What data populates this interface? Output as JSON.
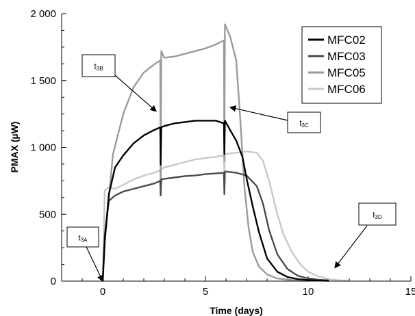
{
  "chart_data": {
    "type": "line",
    "xlabel": "Time (days)",
    "ylabel": "PMAX (µW)",
    "xlim": [
      -2,
      15
    ],
    "ylim": [
      0,
      2000
    ],
    "xticks": [
      {
        "value": 0,
        "label": "0"
      },
      {
        "value": 5,
        "label": "5"
      },
      {
        "value": 10,
        "label": "10"
      },
      {
        "value": 15,
        "label": "15"
      }
    ],
    "yticks": [
      {
        "value": 0,
        "label": "0"
      },
      {
        "value": 500,
        "label": "500"
      },
      {
        "value": 1000,
        "label": "1 000"
      },
      {
        "value": 1500,
        "label": "1 500"
      },
      {
        "value": 2000,
        "label": "2 000"
      }
    ],
    "legend_position": "top-right",
    "series": [
      {
        "name": "MFC02",
        "color": "#000000",
        "x": [
          0,
          0.1,
          0.3,
          0.6,
          1,
          1.5,
          2,
          2.5,
          2.8,
          2.82,
          2.85,
          3,
          3.5,
          4,
          4.5,
          5,
          5.5,
          5.9,
          5.92,
          5.95,
          6.2,
          6.5,
          6.8,
          7,
          7.3,
          7.6,
          8,
          8.5,
          9,
          9.5,
          10,
          10.5,
          11
        ],
        "y": [
          0,
          300,
          650,
          850,
          940,
          1030,
          1090,
          1130,
          1150,
          870,
          1150,
          1160,
          1180,
          1190,
          1200,
          1200,
          1200,
          1180,
          950,
          1200,
          1130,
          1050,
          930,
          770,
          560,
          370,
          170,
          70,
          30,
          15,
          8,
          4,
          2
        ]
      },
      {
        "name": "MFC03",
        "color": "#4a4a4a",
        "x": [
          0,
          0.1,
          0.3,
          0.6,
          1,
          1.5,
          2,
          2.5,
          2.8,
          2.82,
          2.85,
          3,
          3.5,
          4,
          4.5,
          5,
          5.5,
          5.9,
          5.92,
          5.95,
          6.5,
          7,
          7.5,
          7.8,
          8.1,
          8.5,
          9,
          9.5,
          10,
          10.5,
          11
        ],
        "y": [
          0,
          350,
          600,
          640,
          670,
          690,
          710,
          730,
          750,
          640,
          760,
          765,
          775,
          785,
          790,
          800,
          805,
          810,
          650,
          820,
          810,
          790,
          710,
          580,
          380,
          200,
          90,
          40,
          20,
          10,
          5
        ]
      },
      {
        "name": "MFC05",
        "color": "#9a9a9a",
        "x": [
          0,
          0.1,
          0.5,
          1,
          1.5,
          2,
          2.5,
          2.7,
          2.8,
          2.82,
          2.85,
          3,
          3.5,
          4,
          4.5,
          5,
          5.5,
          5.9,
          5.92,
          5.95,
          6.2,
          6.5,
          6.7,
          6.9,
          7.1,
          7.3,
          7.6,
          8,
          8.5,
          9,
          9.5,
          10
        ],
        "y": [
          0,
          300,
          950,
          1250,
          1450,
          1560,
          1620,
          1640,
          1650,
          720,
          1720,
          1670,
          1680,
          1700,
          1720,
          1740,
          1770,
          1800,
          900,
          1920,
          1830,
          1650,
          1200,
          700,
          400,
          220,
          110,
          50,
          20,
          10,
          5,
          2
        ]
      },
      {
        "name": "MFC06",
        "color": "#c8c8c8",
        "x": [
          0,
          0.1,
          0.3,
          0.6,
          1,
          1.5,
          2,
          2.5,
          2.8,
          2.82,
          2.85,
          3,
          3.5,
          4,
          4.5,
          5,
          5.5,
          5.9,
          5.92,
          5.95,
          6.5,
          7,
          7.5,
          7.8,
          8.1,
          8.5,
          8.8,
          9.2,
          9.6,
          10,
          10.5,
          11,
          11.5,
          12
        ],
        "y": [
          0,
          680,
          700,
          690,
          720,
          760,
          790,
          810,
          830,
          700,
          840,
          850,
          870,
          890,
          910,
          920,
          930,
          940,
          800,
          950,
          960,
          970,
          960,
          900,
          750,
          500,
          350,
          220,
          130,
          70,
          35,
          15,
          6,
          2
        ]
      }
    ],
    "annotations": [
      {
        "main": "t",
        "sub": "3A",
        "x": 0,
        "y": 0
      },
      {
        "main": "t",
        "sub": "3B",
        "x": 2.6,
        "y": 1270
      },
      {
        "main": "t",
        "sub": "3C",
        "x": 6.2,
        "y": 1300
      },
      {
        "main": "t",
        "sub": "3D",
        "x": 11.3,
        "y": 100
      }
    ]
  }
}
